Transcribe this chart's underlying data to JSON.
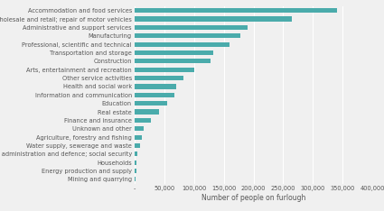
{
  "categories": [
    "Accommodation and food services",
    "Wholesale and retail; repair of motor vehicles",
    "Administrative and support services",
    "Manufacturing",
    "Professional, scientific and technical",
    "Transportation and storage",
    "Construction",
    "Arts, entertainment and recreation",
    "Other service activities",
    "Health and social work",
    "Information and communication",
    "Education",
    "Real estate",
    "Finance and insurance",
    "Unknown and other",
    "Agriculture, forestry and fishing",
    "Water supply, sewerage and waste",
    "Public administration and defence; social security",
    "Households",
    "Energy production and supply",
    "Mining and quarrying"
  ],
  "values": [
    340000,
    265000,
    190000,
    178000,
    160000,
    132000,
    128000,
    100000,
    83000,
    70000,
    67000,
    55000,
    42000,
    27000,
    15000,
    12000,
    10000,
    5000,
    4000,
    3000,
    2000
  ],
  "bar_color": "#4aabab",
  "xlabel": "Number of people on furlough",
  "xlim": [
    0,
    400000
  ],
  "xticks": [
    0,
    50000,
    100000,
    150000,
    200000,
    250000,
    300000,
    350000,
    400000
  ],
  "xtick_labels": [
    "-",
    "50,000",
    "100,000",
    "150,000",
    "200,000",
    "250,000",
    "300,000",
    "350,000",
    "400,000"
  ],
  "background_color": "#f0f0f0",
  "label_fontsize": 4.8,
  "xlabel_fontsize": 5.5,
  "xtick_fontsize": 4.8,
  "grid_color": "#ffffff",
  "text_color": "#555555"
}
